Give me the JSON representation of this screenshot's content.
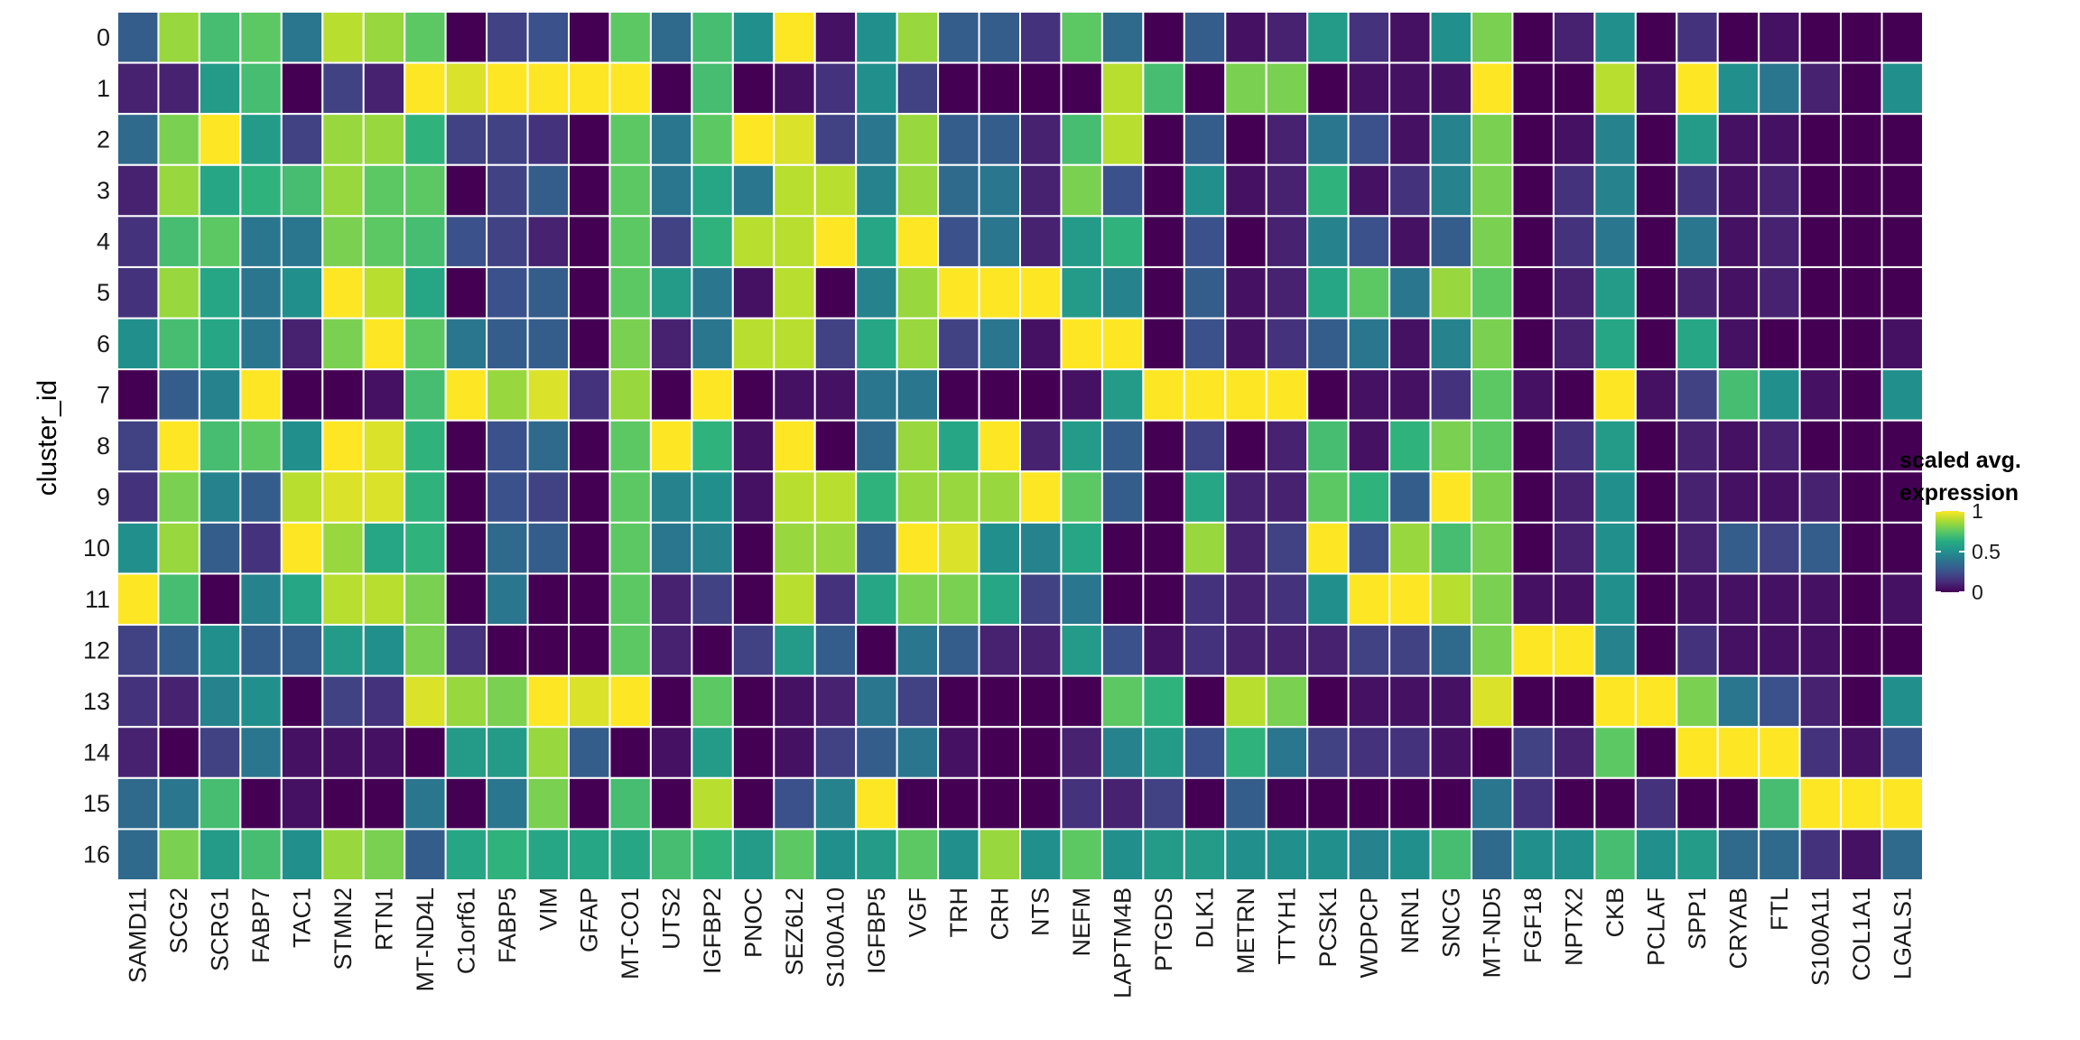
{
  "chart_data": {
    "type": "heatmap",
    "ylabel": "cluster_id",
    "xlabel": "",
    "rows": [
      "0",
      "1",
      "2",
      "3",
      "4",
      "5",
      "6",
      "7",
      "8",
      "9",
      "10",
      "11",
      "12",
      "13",
      "14",
      "15",
      "16"
    ],
    "columns": [
      "SAMD11",
      "SCG2",
      "SCRG1",
      "FABP7",
      "TAC1",
      "STMN2",
      "RTN1",
      "MT-ND4L",
      "C1orf61",
      "FABP5",
      "VIM",
      "GFAP",
      "MT-CO1",
      "UTS2",
      "IGFBP2",
      "PNOC",
      "SEZ6L2",
      "S100A10",
      "IGFBP5",
      "VGF",
      "TRH",
      "CRH",
      "NTS",
      "NEFM",
      "LAPTM4B",
      "PTGDS",
      "DLK1",
      "METRN",
      "TTYH1",
      "PCSK1",
      "WDPCP",
      "NRN1",
      "SNCG",
      "MT-ND5",
      "FGF18",
      "NPTX2",
      "CKB",
      "PCLAF",
      "SPP1",
      "CRYAB",
      "FTL",
      "S100A11",
      "COL1A1",
      "LGALS1"
    ],
    "values": [
      [
        0.3,
        0.85,
        0.7,
        0.75,
        0.4,
        0.9,
        0.85,
        0.75,
        0.0,
        0.2,
        0.25,
        0.0,
        0.75,
        0.35,
        0.7,
        0.5,
        1.0,
        0.05,
        0.5,
        0.85,
        0.3,
        0.3,
        0.15,
        0.75,
        0.35,
        0.0,
        0.3,
        0.05,
        0.1,
        0.55,
        0.15,
        0.05,
        0.5,
        0.8,
        0.0,
        0.1,
        0.5,
        0.0,
        0.15,
        0.0,
        0.05,
        0.0,
        0.0,
        0.0
      ],
      [
        0.1,
        0.1,
        0.55,
        0.7,
        0.0,
        0.2,
        0.1,
        1.0,
        0.95,
        1.0,
        1.0,
        1.0,
        1.0,
        0.0,
        0.7,
        0.0,
        0.05,
        0.15,
        0.5,
        0.2,
        0.0,
        0.0,
        0.0,
        0.0,
        0.9,
        0.7,
        0.0,
        0.8,
        0.8,
        0.0,
        0.05,
        0.05,
        0.05,
        1.0,
        0.0,
        0.0,
        0.9,
        0.05,
        1.0,
        0.5,
        0.4,
        0.1,
        0.0,
        0.5
      ],
      [
        0.35,
        0.8,
        1.0,
        0.55,
        0.2,
        0.85,
        0.85,
        0.65,
        0.2,
        0.2,
        0.15,
        0.0,
        0.75,
        0.4,
        0.75,
        1.0,
        0.95,
        0.2,
        0.4,
        0.85,
        0.3,
        0.3,
        0.1,
        0.7,
        0.9,
        0.0,
        0.3,
        0.0,
        0.1,
        0.4,
        0.25,
        0.05,
        0.45,
        0.8,
        0.0,
        0.05,
        0.45,
        0.0,
        0.55,
        0.05,
        0.05,
        0.0,
        0.0,
        0.0
      ],
      [
        0.1,
        0.85,
        0.6,
        0.65,
        0.7,
        0.85,
        0.75,
        0.75,
        0.0,
        0.2,
        0.3,
        0.0,
        0.75,
        0.4,
        0.6,
        0.4,
        0.9,
        0.9,
        0.45,
        0.85,
        0.35,
        0.4,
        0.1,
        0.8,
        0.25,
        0.0,
        0.5,
        0.05,
        0.1,
        0.65,
        0.05,
        0.15,
        0.45,
        0.8,
        0.0,
        0.15,
        0.45,
        0.0,
        0.15,
        0.05,
        0.1,
        0.0,
        0.0,
        0.0
      ],
      [
        0.15,
        0.7,
        0.75,
        0.4,
        0.4,
        0.8,
        0.75,
        0.7,
        0.25,
        0.2,
        0.1,
        0.0,
        0.75,
        0.2,
        0.65,
        0.9,
        0.9,
        1.0,
        0.6,
        1.0,
        0.25,
        0.4,
        0.1,
        0.55,
        0.65,
        0.0,
        0.25,
        0.0,
        0.1,
        0.45,
        0.25,
        0.05,
        0.3,
        0.8,
        0.0,
        0.15,
        0.4,
        0.0,
        0.4,
        0.05,
        0.1,
        0.0,
        0.0,
        0.0
      ],
      [
        0.15,
        0.85,
        0.6,
        0.4,
        0.5,
        1.0,
        0.9,
        0.6,
        0.0,
        0.25,
        0.3,
        0.0,
        0.75,
        0.55,
        0.4,
        0.05,
        0.9,
        0.0,
        0.45,
        0.85,
        1.0,
        1.0,
        1.0,
        0.55,
        0.45,
        0.0,
        0.3,
        0.05,
        0.1,
        0.6,
        0.75,
        0.4,
        0.85,
        0.75,
        0.0,
        0.1,
        0.55,
        0.0,
        0.1,
        0.05,
        0.1,
        0.0,
        0.0,
        0.0
      ],
      [
        0.5,
        0.7,
        0.6,
        0.4,
        0.1,
        0.8,
        1.0,
        0.75,
        0.4,
        0.3,
        0.3,
        0.0,
        0.8,
        0.1,
        0.4,
        0.9,
        0.9,
        0.2,
        0.6,
        0.85,
        0.2,
        0.4,
        0.05,
        1.0,
        1.0,
        0.0,
        0.25,
        0.05,
        0.15,
        0.3,
        0.4,
        0.05,
        0.45,
        0.8,
        0.0,
        0.1,
        0.6,
        0.0,
        0.6,
        0.05,
        0.0,
        0.0,
        0.0,
        0.05
      ],
      [
        0.0,
        0.3,
        0.45,
        1.0,
        0.0,
        0.0,
        0.05,
        0.7,
        1.0,
        0.85,
        0.95,
        0.15,
        0.85,
        0.0,
        1.0,
        0.0,
        0.05,
        0.05,
        0.4,
        0.4,
        0.0,
        0.0,
        0.0,
        0.05,
        0.55,
        1.0,
        1.0,
        1.0,
        1.0,
        0.0,
        0.05,
        0.05,
        0.15,
        0.75,
        0.05,
        0.0,
        1.0,
        0.05,
        0.2,
        0.7,
        0.5,
        0.05,
        0.0,
        0.5
      ],
      [
        0.2,
        1.0,
        0.7,
        0.75,
        0.5,
        1.0,
        0.95,
        0.65,
        0.0,
        0.25,
        0.35,
        0.0,
        0.75,
        1.0,
        0.65,
        0.05,
        1.0,
        0.0,
        0.35,
        0.85,
        0.6,
        1.0,
        0.1,
        0.55,
        0.3,
        0.0,
        0.2,
        0.0,
        0.1,
        0.7,
        0.05,
        0.65,
        0.8,
        0.75,
        0.0,
        0.15,
        0.55,
        0.0,
        0.1,
        0.05,
        0.1,
        0.0,
        0.0,
        0.0
      ],
      [
        0.15,
        0.8,
        0.45,
        0.3,
        0.9,
        0.95,
        0.95,
        0.65,
        0.0,
        0.25,
        0.2,
        0.0,
        0.75,
        0.45,
        0.5,
        0.05,
        0.9,
        0.9,
        0.65,
        0.85,
        0.85,
        0.85,
        1.0,
        0.75,
        0.3,
        0.0,
        0.6,
        0.1,
        0.1,
        0.75,
        0.65,
        0.3,
        1.0,
        0.8,
        0.0,
        0.1,
        0.5,
        0.0,
        0.1,
        0.05,
        0.05,
        0.1,
        0.0,
        0.0
      ],
      [
        0.5,
        0.85,
        0.3,
        0.15,
        1.0,
        0.85,
        0.6,
        0.65,
        0.0,
        0.35,
        0.3,
        0.0,
        0.75,
        0.4,
        0.45,
        0.0,
        0.85,
        0.85,
        0.3,
        1.0,
        0.95,
        0.5,
        0.45,
        0.6,
        0.0,
        0.0,
        0.85,
        0.1,
        0.2,
        1.0,
        0.25,
        0.85,
        0.7,
        0.8,
        0.0,
        0.1,
        0.5,
        0.0,
        0.1,
        0.3,
        0.2,
        0.3,
        0.0,
        0.0
      ],
      [
        1.0,
        0.7,
        0.0,
        0.45,
        0.6,
        0.9,
        0.9,
        0.8,
        0.0,
        0.4,
        0.0,
        0.0,
        0.75,
        0.1,
        0.2,
        0.0,
        0.9,
        0.15,
        0.6,
        0.8,
        0.8,
        0.6,
        0.2,
        0.4,
        0.0,
        0.0,
        0.15,
        0.1,
        0.15,
        0.5,
        1.0,
        1.0,
        0.9,
        0.8,
        0.05,
        0.05,
        0.5,
        0.0,
        0.05,
        0.05,
        0.05,
        0.05,
        0.0,
        0.05
      ],
      [
        0.2,
        0.3,
        0.5,
        0.3,
        0.3,
        0.55,
        0.5,
        0.8,
        0.15,
        0.0,
        0.0,
        0.0,
        0.75,
        0.1,
        0.0,
        0.2,
        0.55,
        0.3,
        0.0,
        0.4,
        0.3,
        0.1,
        0.1,
        0.55,
        0.25,
        0.05,
        0.15,
        0.1,
        0.1,
        0.1,
        0.2,
        0.2,
        0.35,
        0.8,
        1.0,
        1.0,
        0.45,
        0.0,
        0.15,
        0.05,
        0.05,
        0.05,
        0.0,
        0.0
      ],
      [
        0.15,
        0.1,
        0.45,
        0.5,
        0.0,
        0.2,
        0.15,
        0.95,
        0.85,
        0.8,
        1.0,
        0.95,
        1.0,
        0.0,
        0.75,
        0.0,
        0.05,
        0.1,
        0.4,
        0.2,
        0.0,
        0.0,
        0.0,
        0.0,
        0.75,
        0.65,
        0.0,
        0.9,
        0.8,
        0.0,
        0.05,
        0.05,
        0.05,
        0.95,
        0.0,
        0.0,
        1.0,
        1.0,
        0.8,
        0.4,
        0.25,
        0.1,
        0.0,
        0.5
      ],
      [
        0.1,
        0.0,
        0.2,
        0.4,
        0.05,
        0.05,
        0.05,
        0.0,
        0.55,
        0.55,
        0.85,
        0.3,
        0.0,
        0.05,
        0.55,
        0.0,
        0.05,
        0.2,
        0.3,
        0.4,
        0.05,
        0.0,
        0.0,
        0.1,
        0.45,
        0.55,
        0.25,
        0.65,
        0.4,
        0.2,
        0.15,
        0.15,
        0.05,
        0.0,
        0.2,
        0.1,
        0.75,
        0.0,
        1.0,
        1.0,
        1.0,
        0.15,
        0.05,
        0.25
      ],
      [
        0.35,
        0.4,
        0.7,
        0.0,
        0.05,
        0.0,
        0.0,
        0.4,
        0.0,
        0.4,
        0.8,
        0.0,
        0.7,
        0.0,
        0.9,
        0.0,
        0.25,
        0.45,
        1.0,
        0.0,
        0.0,
        0.0,
        0.0,
        0.15,
        0.1,
        0.2,
        0.0,
        0.3,
        0.0,
        0.0,
        0.0,
        0.0,
        0.0,
        0.4,
        0.15,
        0.0,
        0.0,
        0.15,
        0.0,
        0.0,
        0.7,
        1.0,
        1.0,
        1.0
      ],
      [
        0.35,
        0.8,
        0.55,
        0.7,
        0.5,
        0.85,
        0.8,
        0.3,
        0.6,
        0.65,
        0.6,
        0.6,
        0.6,
        0.7,
        0.65,
        0.55,
        0.75,
        0.5,
        0.55,
        0.75,
        0.5,
        0.85,
        0.5,
        0.75,
        0.5,
        0.55,
        0.55,
        0.5,
        0.5,
        0.5,
        0.45,
        0.5,
        0.7,
        0.35,
        0.5,
        0.5,
        0.7,
        0.5,
        0.55,
        0.35,
        0.35,
        0.15,
        0.05,
        0.35
      ]
    ],
    "colorscale": "viridis",
    "color_range": [
      0,
      1
    ],
    "legend": {
      "title_line1": "scaled avg.",
      "title_line2": "expression",
      "ticks": [
        1,
        0.5,
        0
      ],
      "tick_labels": [
        "1",
        "0.5",
        "0"
      ],
      "placement": "right"
    }
  }
}
